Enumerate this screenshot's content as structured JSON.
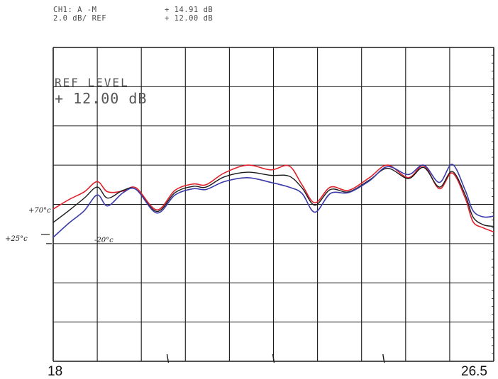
{
  "header": {
    "line1_left": "CH1: A  -M",
    "line1_right": "+ 14.91 dB",
    "line2_left": "2.0 dB/  REF",
    "line2_right": "+ 12.00 dB"
  },
  "ref_level": {
    "title": "REF LEVEL",
    "value": "+ 12.00 dB"
  },
  "chart_data": {
    "type": "line",
    "title": "",
    "xlabel": "",
    "ylabel": "",
    "xlim": [
      18,
      26.5
    ],
    "ylim": [
      -6,
      14
    ],
    "y_per_div": 2.0,
    "grid": true,
    "x_tick_labels": [
      "18",
      "26.5"
    ],
    "trace_labels": [
      "+70°c",
      "+25°c",
      "-20°c"
    ],
    "colors": {
      "hot": "#e0202a",
      "room": "#1a1a1a",
      "cold": "#3a3aa8",
      "grid": "#1a1a1a"
    },
    "series": [
      {
        "name": "+70°c",
        "color": "#e0202a",
        "x": [
          18.0,
          18.3,
          18.6,
          18.85,
          19.05,
          19.35,
          19.6,
          20.0,
          20.35,
          20.7,
          20.95,
          21.3,
          21.75,
          22.2,
          22.55,
          22.8,
          23.05,
          23.35,
          23.7,
          24.1,
          24.45,
          24.85,
          25.15,
          25.45,
          25.7,
          25.95,
          26.1,
          26.3,
          26.5
        ],
        "y": [
          3.7,
          4.3,
          4.8,
          5.45,
          4.8,
          4.85,
          5.05,
          3.65,
          4.9,
          5.3,
          5.25,
          6.0,
          6.5,
          6.2,
          6.45,
          5.25,
          4.1,
          5.1,
          4.9,
          5.7,
          6.5,
          5.7,
          6.45,
          5.0,
          6.0,
          4.4,
          2.9,
          2.5,
          2.25
        ]
      },
      {
        "name": "+25°c",
        "color": "#1a1a1a",
        "x": [
          18.0,
          18.3,
          18.6,
          18.85,
          19.05,
          19.35,
          19.6,
          20.0,
          20.35,
          20.7,
          20.95,
          21.3,
          21.75,
          22.2,
          22.55,
          22.8,
          23.05,
          23.35,
          23.7,
          24.1,
          24.45,
          24.85,
          25.15,
          25.45,
          25.7,
          25.95,
          26.1,
          26.3,
          26.5
        ],
        "y": [
          2.85,
          3.6,
          4.4,
          5.1,
          4.4,
          4.9,
          4.95,
          3.55,
          4.75,
          5.15,
          5.1,
          5.75,
          6.05,
          5.85,
          5.8,
          5.05,
          3.95,
          4.95,
          4.8,
          5.55,
          6.3,
          5.65,
          6.35,
          5.1,
          6.1,
          4.6,
          3.2,
          2.7,
          2.6
        ]
      },
      {
        "name": "-20°c",
        "color": "#3a3aa8",
        "x": [
          18.0,
          18.3,
          18.6,
          18.85,
          19.05,
          19.35,
          19.6,
          20.0,
          20.35,
          20.7,
          20.95,
          21.3,
          21.75,
          22.2,
          22.55,
          22.8,
          23.05,
          23.35,
          23.7,
          24.1,
          24.45,
          24.85,
          25.15,
          25.45,
          25.7,
          25.95,
          26.1,
          26.3,
          26.5
        ],
        "y": [
          1.9,
          2.8,
          3.6,
          4.6,
          3.9,
          4.75,
          4.95,
          3.45,
          4.6,
          5.0,
          4.95,
          5.45,
          5.7,
          5.4,
          5.1,
          4.7,
          3.5,
          4.7,
          4.75,
          5.5,
          6.4,
          5.9,
          6.5,
          5.4,
          6.55,
          4.9,
          3.6,
          3.2,
          3.25
        ]
      }
    ]
  }
}
